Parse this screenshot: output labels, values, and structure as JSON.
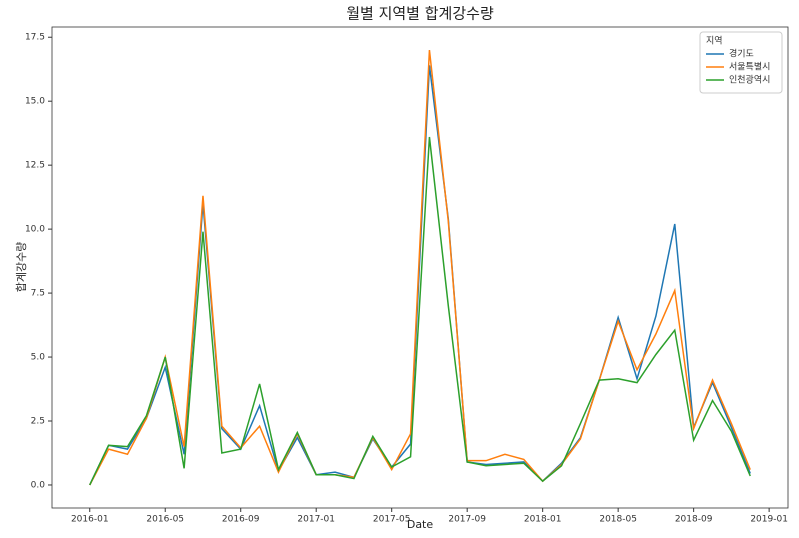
{
  "chart_data": {
    "type": "line",
    "title": "월별 지역별 합계강수량",
    "x_label": "Date",
    "y_label": "합계강수량",
    "x": [
      "2016-01",
      "2016-02",
      "2016-03",
      "2016-04",
      "2016-05",
      "2016-06",
      "2016-07",
      "2016-08",
      "2016-09",
      "2016-10",
      "2016-11",
      "2016-12",
      "2017-01",
      "2017-02",
      "2017-03",
      "2017-04",
      "2017-05",
      "2017-06",
      "2017-07",
      "2017-08",
      "2017-09",
      "2017-10",
      "2017-11",
      "2017-12",
      "2018-01",
      "2018-02",
      "2018-03",
      "2018-04",
      "2018-05",
      "2018-06",
      "2018-07",
      "2018-08",
      "2018-09",
      "2018-10",
      "2018-11",
      "2018-12"
    ],
    "series": [
      {
        "name": "경기도",
        "color": "#1f77b4",
        "values": [
          0,
          1.55,
          1.4,
          2.6,
          4.6,
          1.2,
          11.0,
          2.2,
          1.4,
          3.1,
          0.55,
          1.85,
          0.4,
          0.5,
          0.3,
          1.8,
          0.7,
          1.6,
          16.4,
          10.4,
          0.9,
          0.8,
          0.85,
          0.9,
          0.15,
          0.85,
          1.85,
          4.1,
          6.55,
          4.15,
          6.6,
          10.2,
          2.25,
          4.0,
          2.25,
          0.45
        ]
      },
      {
        "name": "서울특별시",
        "color": "#ff7f0e",
        "values": [
          0,
          1.4,
          1.2,
          2.6,
          5.0,
          1.5,
          11.3,
          2.3,
          1.45,
          2.3,
          0.5,
          2.0,
          0.4,
          0.4,
          0.3,
          1.85,
          0.6,
          2.0,
          17.0,
          10.3,
          0.95,
          0.95,
          1.2,
          1.0,
          0.15,
          0.8,
          1.8,
          4.1,
          6.4,
          4.5,
          5.9,
          7.6,
          2.2,
          4.1,
          2.4,
          0.6
        ]
      },
      {
        "name": "인천광역시",
        "color": "#2ca02c",
        "values": [
          0,
          1.55,
          1.5,
          2.7,
          5.0,
          0.65,
          9.9,
          1.25,
          1.4,
          3.95,
          0.6,
          2.05,
          0.4,
          0.4,
          0.25,
          1.9,
          0.7,
          1.1,
          13.6,
          7.0,
          0.9,
          0.75,
          0.8,
          0.85,
          0.15,
          0.75,
          2.4,
          4.1,
          4.15,
          4.0,
          5.1,
          6.05,
          1.75,
          3.3,
          2.1,
          0.35
        ]
      }
    ],
    "xlim": [
      "2015-11",
      "2019-02"
    ],
    "xticks": [
      "2016-01",
      "2016-05",
      "2016-09",
      "2017-01",
      "2017-05",
      "2017-09",
      "2018-01",
      "2018-05",
      "2018-09",
      "2019-01"
    ],
    "ylim": [
      -0.9,
      17.9
    ],
    "yticks": [
      {
        "value": 0,
        "label": "0.0"
      },
      2.5,
      {
        "value": 5,
        "label": "5.0"
      },
      7.5,
      {
        "value": 10,
        "label": "10.0"
      },
      12.5,
      {
        "value": 15,
        "label": "15.0"
      },
      17.5
    ],
    "legend": {
      "title": "지역",
      "position": "upper right"
    },
    "grid": false
  }
}
